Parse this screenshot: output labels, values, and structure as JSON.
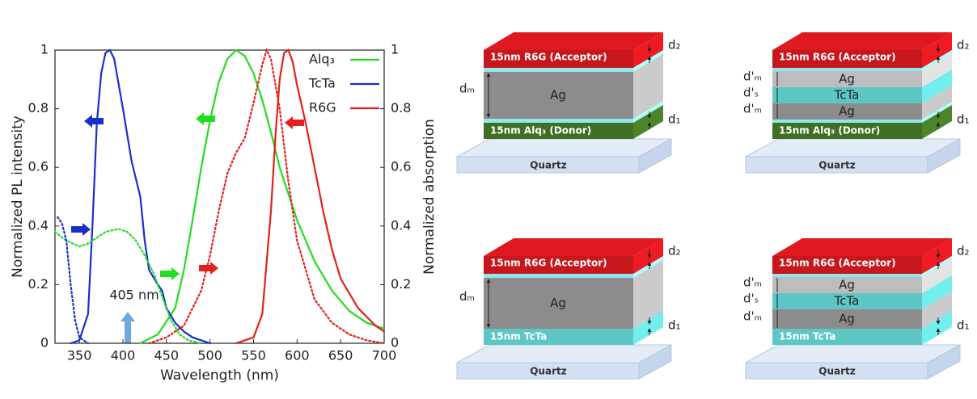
{
  "chart_data": {
    "type": "line",
    "xlabel": "Wavelength (nm)",
    "ylabel": "Normalized PL intensity",
    "y2label": "Normalized absorption",
    "xlim": [
      322,
      700
    ],
    "xticks": [
      350,
      400,
      450,
      500,
      550,
      600,
      650,
      700
    ],
    "ylim": [
      0,
      1
    ],
    "yticks": [
      0,
      0.2,
      0.4,
      0.6,
      0.8,
      1
    ],
    "y2lim": [
      0,
      1
    ],
    "y2ticks": [
      0,
      0.2,
      0.4,
      0.6,
      0.8,
      1
    ],
    "legend": "upper right",
    "annotation": "405 nm",
    "series": [
      {
        "name": "Alq₃",
        "color": "#22dd22",
        "style": "solid",
        "x": [
          420,
          440,
          460,
          470,
          480,
          490,
          500,
          510,
          520,
          530,
          540,
          550,
          560,
          570,
          580,
          600,
          620,
          640,
          660,
          680,
          700
        ],
        "values": [
          0,
          0.03,
          0.12,
          0.25,
          0.42,
          0.6,
          0.76,
          0.89,
          0.97,
          1.0,
          0.98,
          0.92,
          0.83,
          0.72,
          0.6,
          0.42,
          0.28,
          0.18,
          0.11,
          0.07,
          0.05
        ]
      },
      {
        "name": "TcTa",
        "color": "#1a2ecc",
        "style": "solid",
        "x": [
          340,
          350,
          360,
          365,
          370,
          375,
          380,
          385,
          390,
          400,
          410,
          420,
          425,
          430,
          440,
          445,
          450,
          460,
          470,
          480,
          490,
          500
        ],
        "values": [
          0,
          0.01,
          0.1,
          0.4,
          0.75,
          0.92,
          0.99,
          1.0,
          0.97,
          0.8,
          0.62,
          0.5,
          0.35,
          0.25,
          0.2,
          0.18,
          0.12,
          0.07,
          0.04,
          0.02,
          0.01,
          0
        ]
      },
      {
        "name": "R6G",
        "color": "#e3201b",
        "style": "solid",
        "x": [
          530,
          550,
          560,
          570,
          575,
          580,
          585,
          590,
          595,
          600,
          610,
          620,
          630,
          640,
          650,
          670,
          690,
          700
        ],
        "values": [
          0,
          0.02,
          0.1,
          0.45,
          0.7,
          0.9,
          0.99,
          1.0,
          0.96,
          0.88,
          0.75,
          0.6,
          0.45,
          0.32,
          0.22,
          0.12,
          0.06,
          0.04
        ]
      },
      {
        "color": "#22dd22",
        "style": "dotted",
        "axis": "y2",
        "x": [
          322,
          335,
          350,
          360,
          370,
          380,
          395,
          405,
          415,
          425,
          435,
          445,
          455,
          465,
          475,
          490
        ],
        "values": [
          0.38,
          0.35,
          0.33,
          0.34,
          0.36,
          0.38,
          0.39,
          0.38,
          0.35,
          0.3,
          0.24,
          0.16,
          0.08,
          0.03,
          0.01,
          0
        ]
      },
      {
        "color": "#1a2ecc",
        "style": "dotted",
        "axis": "y2",
        "x": [
          325,
          330,
          335,
          340,
          345,
          350,
          360
        ],
        "values": [
          0.43,
          0.41,
          0.35,
          0.2,
          0.08,
          0.02,
          0
        ]
      },
      {
        "color": "#e3201b",
        "style": "dotted",
        "axis": "y2",
        "x": [
          430,
          450,
          470,
          490,
          500,
          510,
          520,
          530,
          540,
          550,
          560,
          565,
          570,
          580,
          590,
          600,
          620,
          640,
          660,
          680,
          700
        ],
        "values": [
          0,
          0.02,
          0.06,
          0.18,
          0.3,
          0.45,
          0.58,
          0.65,
          0.7,
          0.82,
          0.95,
          1.0,
          0.97,
          0.8,
          0.55,
          0.35,
          0.15,
          0.07,
          0.03,
          0.01,
          0
        ]
      }
    ]
  },
  "diagrams": [
    {
      "layers": [
        "15nm  R6G (Acceptor)",
        "Ag",
        "15nm  Alq₃ (Donor)"
      ],
      "substrate": "Quartz",
      "left_labels": [
        "dₘ"
      ],
      "right_labels": [
        "d₂",
        "d₁"
      ]
    },
    {
      "layers": [
        "15nm  R6G (Acceptor)",
        "Ag",
        "TcTa",
        "Ag",
        "15nm  Alq₃ (Donor)"
      ],
      "substrate": "Quartz",
      "left_labels": [
        "d'ₘ",
        "d'ₛ",
        "d'ₘ"
      ],
      "right_labels": [
        "d₂",
        "d₁"
      ]
    },
    {
      "layers": [
        "15nm  R6G (Acceptor)",
        "Ag",
        "15nm  TcTa"
      ],
      "substrate": "Quartz",
      "left_labels": [
        "dₘ"
      ],
      "right_labels": [
        "d₂",
        "d₁"
      ]
    },
    {
      "layers": [
        "15nm  R6G (Acceptor)",
        "Ag",
        "TcTa",
        "Ag",
        "15nm  TcTa"
      ],
      "substrate": "Quartz",
      "left_labels": [
        "d'ₘ",
        "d'ₛ",
        "d'ₘ"
      ],
      "right_labels": [
        "d₂",
        "d₁"
      ]
    }
  ]
}
